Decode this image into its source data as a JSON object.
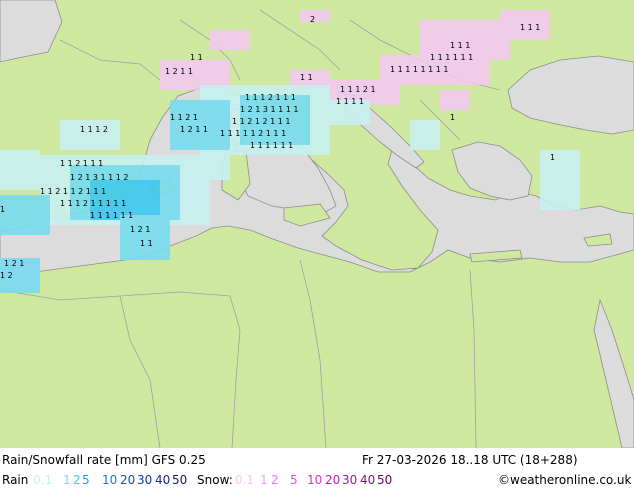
{
  "header": {
    "title": "Rain/Snowfall rate [mm] GFS 0.25",
    "datetime": "Fr 27-03-2026 18..18 UTC (18+288)"
  },
  "legend": {
    "rain_label": "Rain",
    "snow_label": "Snow:",
    "rain_items": [
      {
        "label": "0.1",
        "color": "#c8f0f0"
      },
      {
        "label": "1",
        "color": "#78dcf0"
      },
      {
        "label": "2",
        "color": "#3cc8f0"
      },
      {
        "label": "5",
        "color": "#1ea0f0"
      },
      {
        "label": "10",
        "color": "#1478dc"
      },
      {
        "label": "20",
        "color": "#1450b4"
      },
      {
        "label": "30",
        "color": "#143c8c"
      },
      {
        "label": "40",
        "color": "#1e2878"
      },
      {
        "label": "50",
        "color": "#1e1464"
      }
    ],
    "snow_items": [
      {
        "label": "0.1",
        "color": "#f5c8f5"
      },
      {
        "label": "1",
        "color": "#f0a0f0"
      },
      {
        "label": "2",
        "color": "#e678e6"
      },
      {
        "label": "5",
        "color": "#dc50dc"
      },
      {
        "label": "10",
        "color": "#c83cc8"
      },
      {
        "label": "20",
        "color": "#b428b4"
      },
      {
        "label": "30",
        "color": "#961e96"
      },
      {
        "label": "40",
        "color": "#781478"
      },
      {
        "label": "50",
        "color": "#5a0a5a"
      }
    ],
    "credit": "©weatheronline.co.uk"
  },
  "map": {
    "land_color": "#cfe8a0",
    "sea_color": "#dcdcdc",
    "border_color": "#a0a0a0"
  }
}
